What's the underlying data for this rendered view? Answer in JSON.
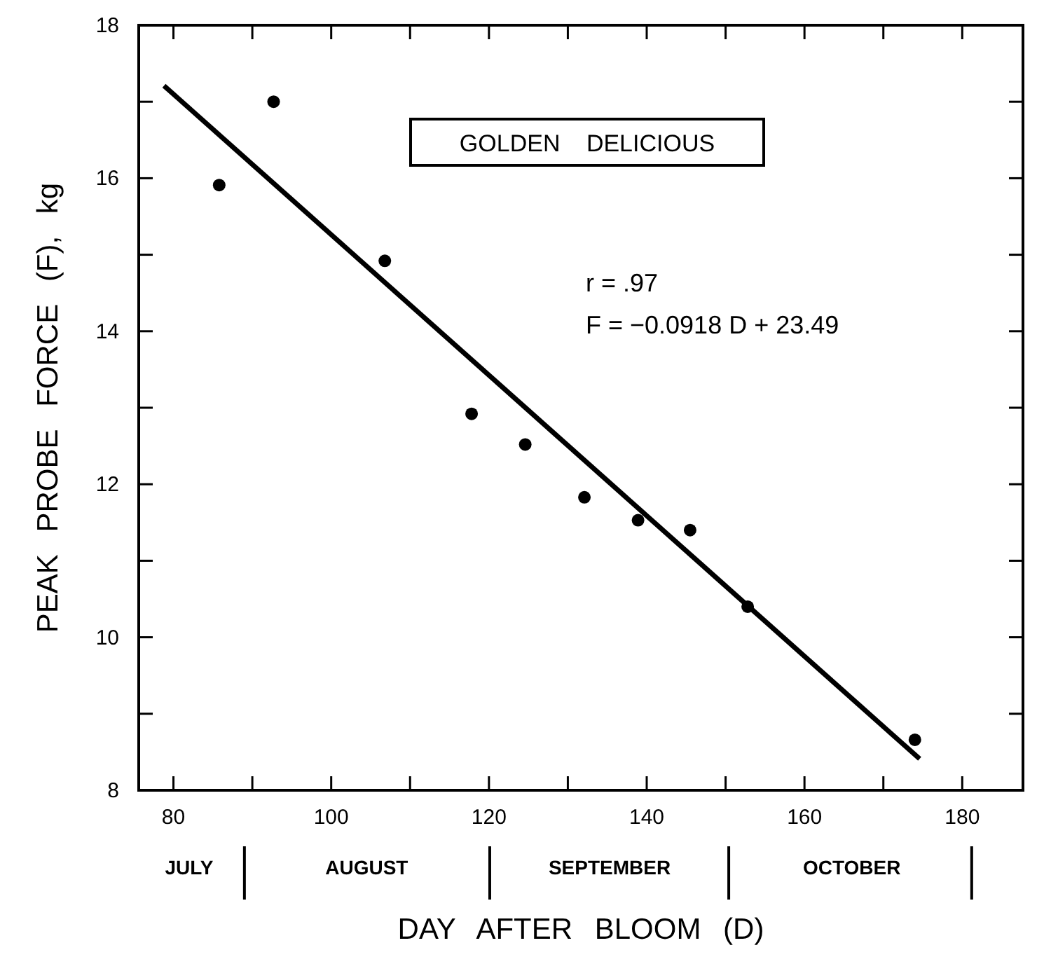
{
  "chart_data": {
    "type": "scatter",
    "title": "GOLDEN DELICIOUS",
    "xlabel": "DAY AFTER BLOOM (D)",
    "ylabel": "PEAK PROBE FORCE (F), kg",
    "annotations": [
      "r = .97",
      "F = −0.0918 D + 23.49",
      "JULY",
      "AUGUST",
      "SEPTEMBER",
      "OCTOBER"
    ],
    "series": [
      {
        "color": "#000000",
        "marker": "circle",
        "x": [
          85.8,
          92.7,
          106.8,
          117.8,
          124.6,
          132.1,
          138.9,
          145.5,
          152.8,
          174.0
        ],
        "values": [
          15.91,
          17.0,
          14.92,
          12.92,
          12.52,
          11.83,
          11.53,
          11.4,
          10.4,
          8.66
        ]
      },
      {
        "type": "line",
        "color": "#000000",
        "x": [
          78.8,
          174.6
        ],
        "values": [
          17.21,
          8.41
        ]
      }
    ],
    "xlim": [
      75.6,
      187.7
    ],
    "xticks": [
      80,
      {
        "value": 90,
        "label": null
      },
      100,
      {
        "value": 110,
        "label": null
      },
      120,
      {
        "value": 130,
        "label": null
      },
      140,
      {
        "value": 150,
        "label": null
      },
      160,
      {
        "value": 170,
        "label": null
      },
      180
    ],
    "ylim": [
      8,
      18
    ],
    "yticks": [
      8,
      {
        "value": 9,
        "label": null
      },
      10,
      {
        "value": 11,
        "label": null
      },
      12,
      {
        "value": 13,
        "label": null
      },
      14,
      {
        "value": 15,
        "label": null
      },
      16,
      {
        "value": 17,
        "label": null
      },
      18
    ]
  }
}
